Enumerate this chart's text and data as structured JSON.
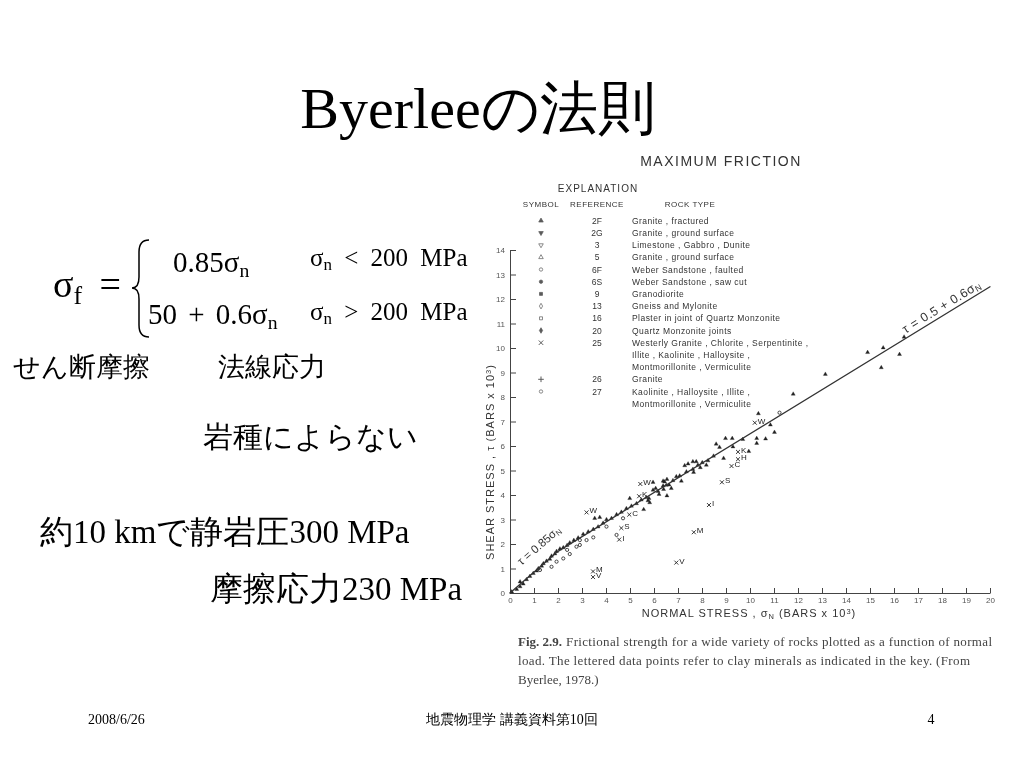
{
  "chart_data": {
    "type": "scatter",
    "title": "Byerleeの法則",
    "subtitle": "MAXIMUM FRICTION",
    "xlabel": "NORMAL STRESS , σ$_{N}$ (BARS x 10$^{3}$)",
    "ylabel": "SHEAR STRESS , τ (BARS x 10$^{3}$)",
    "xlim": [
      0,
      20
    ],
    "xticks": [
      0,
      1,
      2,
      3,
      4,
      5,
      6,
      7,
      8,
      9,
      10,
      11,
      12,
      13,
      14,
      15,
      16,
      17,
      18,
      19,
      20
    ],
    "ylim": [
      0,
      14
    ],
    "yticks": [
      0,
      1,
      2,
      3,
      4,
      5,
      6,
      7,
      8,
      9,
      10,
      11,
      12,
      13,
      14
    ],
    "series": [
      {
        "color": "#222222",
        "marker": "triangle",
        "x": [
          0.07,
          0.28,
          0.42,
          0.42,
          0.55,
          0.69,
          0.83,
          0.97,
          1.11,
          1.18,
          1.32,
          1.39,
          1.52,
          1.66,
          1.73,
          1.87,
          1.94,
          2.08,
          2.22,
          2.38,
          2.49,
          2.66,
          2.84,
          3.05,
          3.26,
          3.47,
          3.53,
          3.67,
          3.74,
          3.88,
          4.02,
          4.23,
          4.44,
          4.64,
          4.85,
          4.99,
          5.06,
          5.27,
          5.47,
          5.57,
          5.68,
          5.75,
          5.79,
          5.82,
          5.96,
          5.96,
          6.07,
          6.17,
          6.21,
          6.38,
          6.38,
          6.4,
          6.44,
          6.51,
          6.54,
          6.54,
          6.63,
          6.72,
          6.79,
          6.93,
          7.07,
          7.14,
          7.28,
          7.35,
          7.42,
          7.62,
          7.62,
          7.65,
          7.76,
          7.83,
          7.93,
          8.01,
          8.18,
          8.25,
          8.48,
          8.59,
          8.73,
          8.9,
          8.98,
          9.26,
          9.29,
          9.7,
          9.95,
          10.28,
          10.28,
          10.35,
          10.65,
          10.85,
          11.02,
          11.8,
          13.14,
          14.9,
          15.47,
          15.55,
          16.23,
          16.42
        ],
        "values": [
          0.05,
          0.15,
          0.26,
          0.46,
          0.37,
          0.55,
          0.68,
          0.8,
          0.9,
          1.0,
          1.1,
          1.2,
          1.3,
          1.38,
          1.51,
          1.6,
          1.7,
          1.8,
          1.85,
          1.95,
          2.05,
          2.15,
          2.25,
          2.4,
          2.5,
          2.6,
          3.05,
          2.7,
          3.09,
          2.85,
          3.0,
          3.05,
          3.2,
          3.3,
          3.45,
          3.86,
          3.55,
          3.65,
          3.8,
          3.41,
          3.9,
          3.77,
          3.86,
          3.69,
          4.2,
          4.52,
          4.27,
          4.15,
          4.03,
          4.37,
          4.57,
          4.23,
          4.54,
          4.4,
          4.64,
          3.97,
          4.41,
          4.27,
          4.59,
          4.75,
          4.78,
          4.57,
          5.2,
          4.95,
          5.27,
          5.05,
          5.36,
          4.93,
          5.36,
          5.22,
          5.12,
          5.32,
          5.22,
          5.4,
          5.59,
          6.08,
          5.95,
          5.5,
          6.31,
          6.31,
          5.97,
          6.27,
          5.78,
          6.31,
          6.11,
          7.32,
          6.29,
          6.86,
          6.56,
          8.12,
          8.93,
          9.82,
          9.2,
          10.01,
          9.74,
          10.45
        ]
      },
      {
        "color": "#333333",
        "marker": "circle",
        "x": [
          1.25,
          1.73,
          1.94,
          2.22,
          2.38,
          2.49,
          2.77,
          2.91,
          2.91,
          3.19,
          3.47,
          4.02,
          4.44,
          4.71,
          11.23
        ],
        "values": [
          0.94,
          1.07,
          1.28,
          1.41,
          1.76,
          1.59,
          1.89,
          1.96,
          2.16,
          2.16,
          2.27,
          2.71,
          2.37,
          3.05,
          7.36
        ]
      },
      {
        "color": "#222222",
        "marker": "cross",
        "x": [
          3.19,
          5.43,
          5.38,
          4.97,
          4.64,
          4.55,
          3.46,
          3.46,
          10.2,
          9.5,
          9.5,
          9.23,
          8.83,
          8.29,
          7.66,
          6.93
        ],
        "values": [
          3.29,
          4.45,
          3.95,
          3.2,
          2.65,
          2.18,
          0.88,
          0.65,
          6.95,
          5.76,
          5.46,
          5.18,
          4.52,
          3.59,
          2.48,
          1.24
        ],
        "value_labels": [
          "W",
          "W",
          "K",
          "C",
          "S",
          "I",
          "M",
          "V",
          "W",
          "K",
          "H",
          "C",
          "S",
          "I",
          "M",
          "V"
        ]
      },
      {
        "type": "line",
        "color": "#333333",
        "marker": "none",
        "x": [
          0,
          2,
          20
        ],
        "values": [
          0,
          1.7,
          12.5
        ]
      }
    ],
    "annotations": [
      "EXPLANATION",
      "SYMBOL",
      "REFERENCE",
      "ROCK TYPE",
      "2F",
      "Granite , fractured",
      "2G",
      "Granite , ground surface",
      "3",
      "Limestone , Gabbro , Dunite",
      "5",
      "Granite , ground surface",
      "6F",
      "Weber Sandstone , faulted",
      "6S",
      "Weber Sandstone , saw cut",
      "9",
      "Granodiorite",
      "13",
      "Gneiss and Mylonite",
      "16",
      "Plaster in joint of Quartz Monzonite",
      "20",
      "Quartz Monzonite joints",
      "25",
      "Westerly Granite , Chlorite , Serpentinite ,",
      "Illite , Kaolinite , Halloysite ,",
      "Montmorillonite , Vermiculite",
      "26",
      "Granite",
      "27",
      "Kaolinite , Halloysite , Illite ,",
      "Montmorillonite , Vermiculite",
      "σ$_{f}$ =",
      "0.85σ$_{n}$",
      "σ$_{n}$ < 200 MPa",
      "50 + 0.6σ$_{n}$",
      "σ$_{n}$ > 200 MPa",
      "せん断摩擦",
      "法線応力",
      "岩種によらない",
      "約10 kmで静岩圧300 MPa",
      "摩擦応力230 MPa",
      "Fig. 2.9.",
      "Frictional strength for a wide variety of rocks plotted as a function of normal",
      "load. The lettered data points refer to clay minerals as indicated in the key. (From",
      "Byerlee, 1978.)",
      "2008/6/26",
      "地震物理学 講義資料第10回",
      "4",
      {
        "text": "τ = 0.85σ$_{N}$",
        "x": 1.67,
        "y": 1.42
      },
      {
        "text": "τ = 0.5 + 0.6σ$_{N}$",
        "x": 18.16,
        "y": 11.4
      }
    ]
  }
}
